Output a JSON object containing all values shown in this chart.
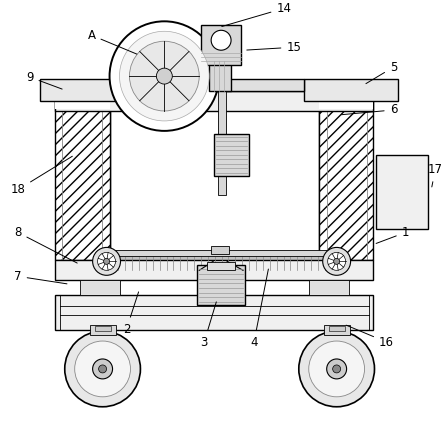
{
  "bg_color": "#ffffff",
  "line_color": "#000000",
  "body_fill": "#f5f5f5",
  "hatch_fill": "#ffffff",
  "gray_fill": "#aaaaaa",
  "light_fill": "#e8e8e8",
  "mid_fill": "#d0d0d0",
  "dark_fill": "#999999"
}
